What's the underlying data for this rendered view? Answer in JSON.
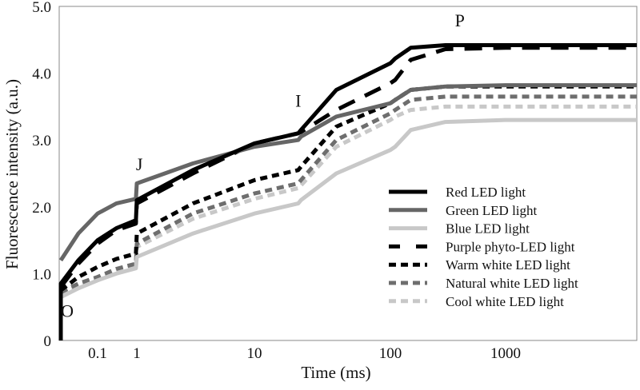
{
  "chart_data": {
    "type": "line",
    "title": "",
    "xlabel": "Time (ms)",
    "ylabel": "Fluorescence intensity (a.u.)",
    "x_scale": "log",
    "xlim": [
      0.01,
      8000
    ],
    "ylim": [
      0,
      5.0
    ],
    "x_ticks": [
      "0.1",
      "1",
      "10",
      "100",
      "1000"
    ],
    "x_tick_values": [
      0.1,
      1,
      10,
      100,
      1000
    ],
    "y_ticks": [
      "0",
      "1.0",
      "2.0",
      "3.0",
      "4.0",
      "5.0"
    ],
    "y_tick_values": [
      0,
      1,
      2,
      3,
      4,
      5
    ],
    "grid": false,
    "legend_placement": "bottom-right",
    "annotations": [
      {
        "text": "O",
        "x": 0.015,
        "y": 0.35
      },
      {
        "text": "J",
        "x": 1.05,
        "y": 2.55
      },
      {
        "text": "I",
        "x": 21,
        "y": 3.5
      },
      {
        "text": "P",
        "x": 400,
        "y": 4.7
      }
    ],
    "x": [
      0.01,
      0.03,
      0.1,
      0.3,
      0.95,
      1.0,
      3,
      10,
      21,
      22,
      40,
      100,
      110,
      150,
      300,
      1000,
      8000
    ],
    "series": [
      {
        "name": "Red LED light",
        "color": "#000000",
        "dash": "solid",
        "values": [
          0.85,
          1.2,
          1.5,
          1.68,
          1.8,
          2.1,
          2.55,
          2.95,
          3.1,
          3.15,
          3.75,
          4.15,
          4.22,
          4.38,
          4.42,
          4.42,
          4.42
        ]
      },
      {
        "name": "Green LED light",
        "color": "#666666",
        "dash": "solid",
        "values": [
          1.2,
          1.6,
          1.9,
          2.05,
          2.12,
          2.35,
          2.65,
          2.9,
          3.0,
          3.05,
          3.35,
          3.55,
          3.6,
          3.75,
          3.8,
          3.82,
          3.82
        ]
      },
      {
        "name": "Blue LED light",
        "color": "#c8c8c8",
        "dash": "solid",
        "values": [
          0.65,
          0.78,
          0.9,
          1.0,
          1.08,
          1.25,
          1.6,
          1.9,
          2.05,
          2.1,
          2.5,
          2.85,
          2.9,
          3.15,
          3.27,
          3.3,
          3.3
        ]
      },
      {
        "name": "Purple phyto-LED light",
        "color": "#000000",
        "dash": "long",
        "values": [
          0.8,
          1.15,
          1.45,
          1.65,
          1.75,
          2.05,
          2.5,
          2.95,
          3.1,
          3.12,
          3.45,
          3.85,
          3.9,
          4.2,
          4.36,
          4.38,
          4.38
        ]
      },
      {
        "name": "Warm white LED light",
        "color": "#000000",
        "dash": "short",
        "values": [
          0.75,
          0.95,
          1.1,
          1.22,
          1.3,
          1.6,
          2.05,
          2.4,
          2.55,
          2.6,
          3.2,
          3.55,
          3.6,
          3.75,
          3.8,
          3.8,
          3.8
        ]
      },
      {
        "name": "Natural white LED light",
        "color": "#6e6e6e",
        "dash": "short",
        "values": [
          0.72,
          0.85,
          0.95,
          1.07,
          1.15,
          1.45,
          1.9,
          2.2,
          2.35,
          2.4,
          3.0,
          3.4,
          3.45,
          3.6,
          3.65,
          3.65,
          3.65
        ]
      },
      {
        "name": "Cool white LED light",
        "color": "#c8c8c8",
        "dash": "short",
        "values": [
          0.7,
          0.82,
          0.92,
          1.04,
          1.12,
          1.4,
          1.82,
          2.12,
          2.28,
          2.32,
          2.9,
          3.3,
          3.35,
          3.45,
          3.5,
          3.5,
          3.5
        ]
      }
    ]
  }
}
